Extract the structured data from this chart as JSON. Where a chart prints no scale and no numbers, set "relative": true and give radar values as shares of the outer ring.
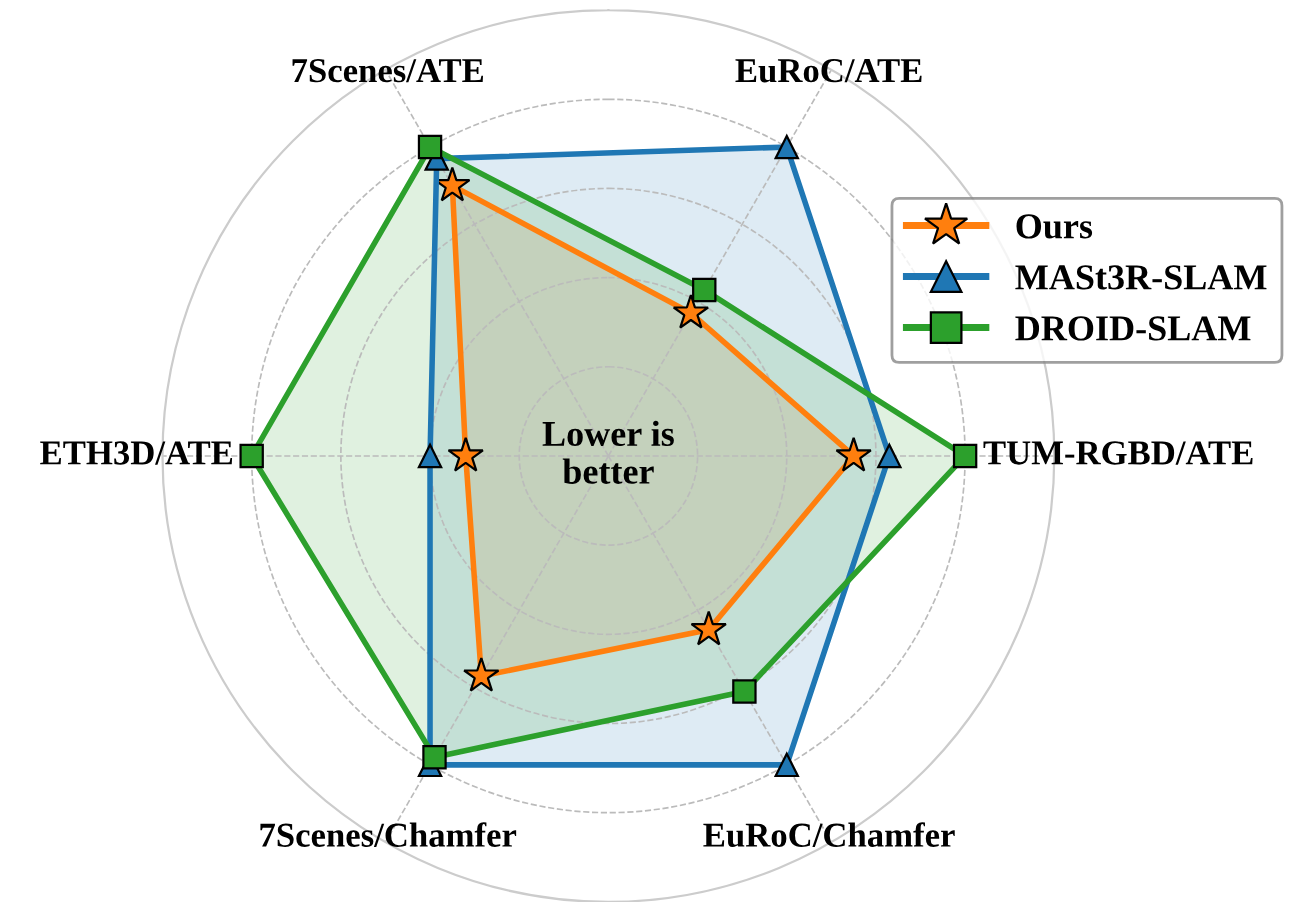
{
  "chart_data": {
    "type": "radar",
    "relative": true,
    "grid": true,
    "legend": "top right",
    "categories": [
      "EuRoC/ATE",
      "TUM-RGBD/ATE",
      "EuRoC/Chamfer",
      "7Scenes/Chamfer",
      "ETH3D/ATE",
      "7Scenes/ATE"
    ],
    "annotations": [
      "Lower is\nbetter"
    ],
    "series": [
      {
        "name": "Ours",
        "color": "#ff7f0e",
        "marker": "star",
        "values": [
          0.37,
          0.55,
          0.45,
          0.57,
          0.32,
          0.7
        ]
      },
      {
        "name": "MASt3R-SLAM",
        "color": "#1f77b4",
        "marker": "triangle",
        "values": [
          0.8,
          0.63,
          0.8,
          0.8,
          0.4,
          0.77
        ]
      },
      {
        "name": "DROID-SLAM",
        "color": "#2ca02c",
        "marker": "square",
        "values": [
          0.43,
          0.8,
          0.61,
          0.78,
          0.8,
          0.8
        ]
      }
    ]
  }
}
